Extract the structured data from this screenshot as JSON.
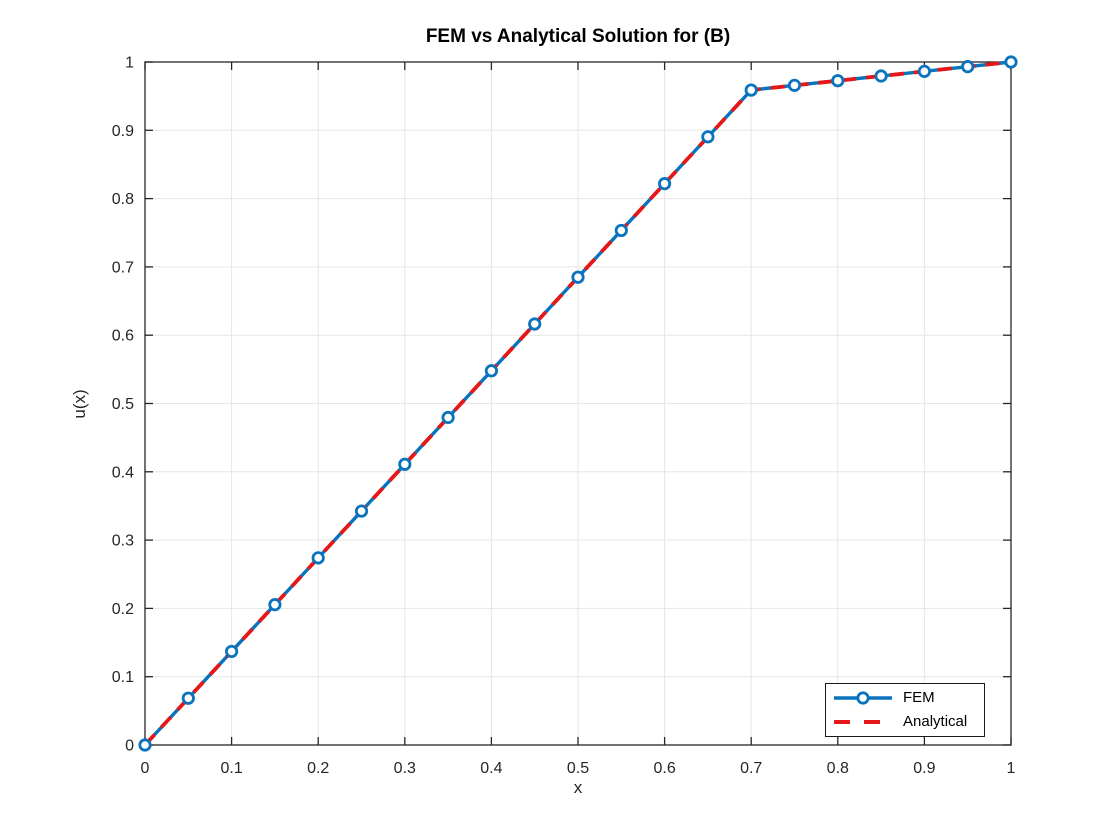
{
  "chart_data": {
    "type": "line",
    "title": "FEM vs Analytical Solution for (B)",
    "xlabel": "x",
    "ylabel": "u(x)",
    "xlim": [
      0,
      1
    ],
    "ylim": [
      0,
      1
    ],
    "xticks": [
      0,
      0.1,
      0.2,
      0.3,
      0.4,
      0.5,
      0.6,
      0.7,
      0.8,
      0.9,
      1
    ],
    "xtick_labels": [
      "0",
      "0.1",
      "0.2",
      "0.3",
      "0.4",
      "0.5",
      "0.6",
      "0.7",
      "0.8",
      "0.9",
      "1"
    ],
    "yticks": [
      0,
      0.1,
      0.2,
      0.3,
      0.4,
      0.5,
      0.6,
      0.7,
      0.8,
      0.9,
      1
    ],
    "ytick_labels": [
      "0",
      "0.1",
      "0.2",
      "0.3",
      "0.4",
      "0.5",
      "0.6",
      "0.7",
      "0.8",
      "0.9",
      "1"
    ],
    "grid": true,
    "grid_color": "#e6e6e6",
    "axis_color": "#262626",
    "background_color": "#ffffff",
    "legend_position": "bottom-right",
    "series": [
      {
        "name": "FEM",
        "color": "#0a73be",
        "style": "solid",
        "marker": "circle",
        "x": [
          0,
          0.05,
          0.1,
          0.15,
          0.2,
          0.25,
          0.3,
          0.35,
          0.4,
          0.45,
          0.5,
          0.55,
          0.6,
          0.65,
          0.7,
          0.75,
          0.8,
          0.85,
          0.9,
          0.95,
          1
        ],
        "y": [
          0,
          0.0685,
          0.137,
          0.2055,
          0.274,
          0.3425,
          0.411,
          0.4795,
          0.5479,
          0.6164,
          0.6849,
          0.7534,
          0.8219,
          0.8904,
          0.9589,
          0.9658,
          0.9726,
          0.9795,
          0.9863,
          0.9932,
          1
        ]
      },
      {
        "name": "Analytical",
        "color": "#e61717",
        "style": "dashed",
        "marker": "none",
        "x": [
          0,
          0.7,
          1
        ],
        "y": [
          0,
          0.9589,
          1
        ]
      }
    ]
  }
}
